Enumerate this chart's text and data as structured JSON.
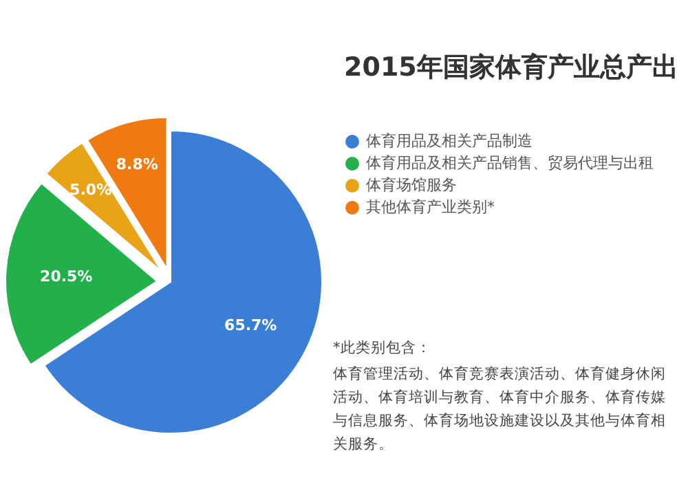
{
  "chart_data": {
    "type": "pie",
    "title": "2015年国家体育产业总产出",
    "categories": [
      "体育用品及相关产品制造",
      "体育用品及相关产品销售、贸易代理与出租",
      "体育场馆服务",
      "其他体育产业类别*"
    ],
    "values": [
      65.7,
      20.5,
      5.0,
      8.8
    ],
    "colors": [
      "#3a7fd5",
      "#22b04a",
      "#e8a317",
      "#ef7a10"
    ],
    "value_labels": [
      "65.7%",
      "20.5%",
      "5.0%",
      "8.8%"
    ],
    "legend": "right",
    "annotations": [
      "*此类别包含：",
      "体育管理活动、体育竞赛表演活动、体育健身休闲活动、体育培训与教育、体育中介服务、体育传媒与信息服务、体育场地设施建设以及其他与体育相关服务。"
    ]
  }
}
